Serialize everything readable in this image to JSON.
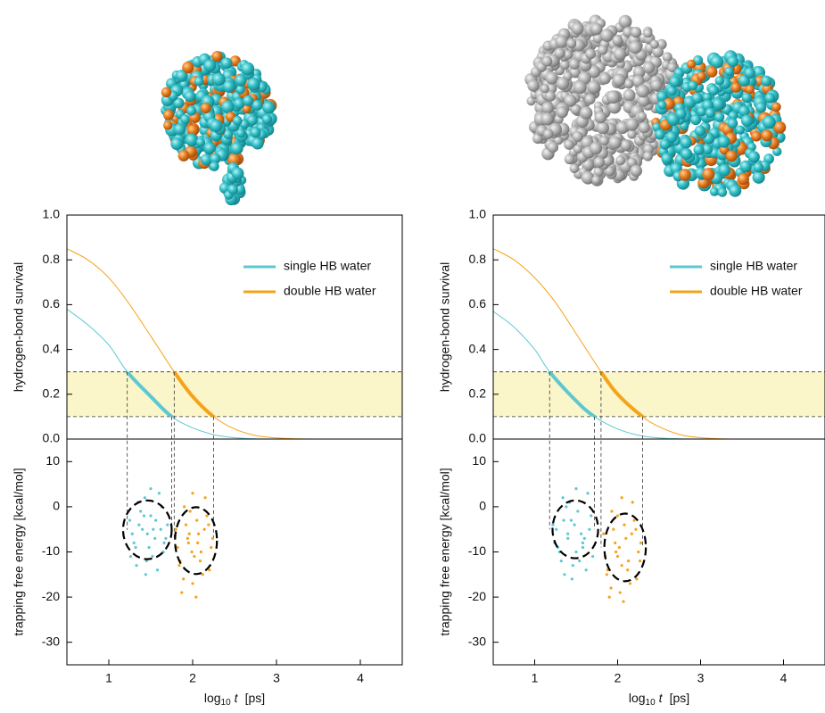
{
  "chart_data": [
    {
      "type": "line",
      "ylabel": "hydrogen-bond survival",
      "xlim": [
        0.5,
        4.5
      ],
      "ylim": [
        0,
        1
      ],
      "yticks": [
        {
          "value": 0,
          "label": "0.0"
        },
        {
          "value": 0.2,
          "label": "0.2"
        },
        {
          "value": 0.4,
          "label": "0.4"
        },
        {
          "value": 0.6,
          "label": "0.6"
        },
        {
          "value": 0.8,
          "label": "0.8"
        },
        {
          "value": 1,
          "label": "1.0"
        }
      ],
      "band": [
        0.1,
        0.3
      ],
      "legend": "upper right",
      "series": [
        {
          "name": "single HB water",
          "color": "#5ec8d2",
          "x": [
            0.5,
            0.75,
            1.0,
            1.22,
            1.5,
            1.75,
            2.0,
            2.25,
            2.5,
            2.75,
            3.0
          ],
          "values": [
            0.58,
            0.51,
            0.42,
            0.3,
            0.19,
            0.1,
            0.05,
            0.02,
            0.006,
            0.001,
            0
          ],
          "window": [
            1.22,
            1.75
          ]
        },
        {
          "name": "double HB water",
          "color": "#f5a31a",
          "x": [
            0.5,
            0.75,
            1.0,
            1.25,
            1.5,
            1.78,
            2.0,
            2.25,
            2.5,
            2.75,
            3.0,
            3.25,
            3.5
          ],
          "values": [
            0.85,
            0.8,
            0.72,
            0.6,
            0.46,
            0.3,
            0.19,
            0.1,
            0.045,
            0.016,
            0.005,
            0.001,
            0
          ],
          "window": [
            1.78,
            2.25
          ]
        }
      ]
    },
    {
      "type": "scatter",
      "ylabel": "trapping free energy [kcal/mol]",
      "xlabel": {
        "base": "log",
        "sub": "10",
        "var": "t",
        "unit": "[ps]"
      },
      "xlim": [
        0.5,
        4.5
      ],
      "ylim": [
        -35,
        15
      ],
      "xticks": [
        1,
        2,
        3,
        4
      ],
      "yticks": [
        10,
        0,
        -10,
        -20,
        -30
      ],
      "series": [
        {
          "color": "#5ec8d2",
          "x": [
            1.25,
            1.3,
            1.35,
            1.4,
            1.45,
            1.5,
            1.55,
            1.6,
            1.65,
            1.7,
            1.28,
            1.33,
            1.38,
            1.43,
            1.48,
            1.53,
            1.58,
            1.63,
            1.68,
            1.26,
            1.36,
            1.46,
            1.56,
            1.66,
            1.32,
            1.42,
            1.52,
            1.62,
            1.44,
            1.5
          ],
          "values": [
            -3,
            -8,
            1,
            -5,
            -12,
            -2,
            -7,
            3,
            -10,
            -4,
            -6,
            -13,
            -1,
            2,
            -9,
            -5,
            -14,
            0,
            -7,
            -11,
            -4,
            -6,
            -3,
            -8,
            -9,
            -2,
            -11,
            -5,
            -15,
            4
          ],
          "ellipse": {
            "cx": 1.46,
            "cy": -5.1,
            "rx": 0.29,
            "ry": 6.5
          }
        },
        {
          "color": "#f5a31a",
          "x": [
            1.8,
            1.85,
            1.9,
            1.95,
            2.0,
            2.05,
            2.1,
            2.15,
            2.2,
            2.24,
            1.82,
            1.87,
            1.92,
            1.97,
            2.02,
            2.07,
            2.12,
            2.17,
            2.22,
            1.84,
            1.94,
            2.04,
            2.14,
            1.89,
            1.99,
            2.09,
            2.19,
            2.0,
            2.06,
            1.96
          ],
          "values": [
            -5,
            -12,
            0,
            -8,
            -17,
            -3,
            -10,
            2,
            -14,
            -7,
            -9,
            -19,
            -4,
            -1,
            -11,
            -6,
            -15,
            -2,
            -9,
            -13,
            -7,
            -20,
            -5,
            -16,
            -10,
            -12,
            -4,
            3,
            -8,
            -6
          ],
          "ellipse": {
            "cx": 2.04,
            "cy": -7.5,
            "rx": 0.25,
            "ry": 7.4
          }
        }
      ]
    },
    {
      "type": "line",
      "ylabel": "hydrogen-bond survival",
      "xlim": [
        0.5,
        4.5
      ],
      "ylim": [
        0,
        1
      ],
      "yticks": [
        {
          "value": 0,
          "label": "0.0"
        },
        {
          "value": 0.2,
          "label": "0.2"
        },
        {
          "value": 0.4,
          "label": "0.4"
        },
        {
          "value": 0.6,
          "label": "0.6"
        },
        {
          "value": 0.8,
          "label": "0.8"
        },
        {
          "value": 1,
          "label": "1.0"
        }
      ],
      "band": [
        0.1,
        0.3
      ],
      "legend": "upper right",
      "series": [
        {
          "name": "single HB water",
          "color": "#5ec8d2",
          "x": [
            0.5,
            0.75,
            1.0,
            1.18,
            1.5,
            1.72,
            2.0,
            2.25,
            2.5,
            2.75,
            3.0
          ],
          "values": [
            0.57,
            0.5,
            0.4,
            0.3,
            0.17,
            0.1,
            0.045,
            0.017,
            0.005,
            0.001,
            0
          ],
          "window": [
            1.18,
            1.72
          ]
        },
        {
          "name": "double HB water",
          "color": "#f5a31a",
          "x": [
            0.5,
            0.75,
            1.0,
            1.25,
            1.5,
            1.8,
            2.0,
            2.3,
            2.5,
            2.75,
            3.0,
            3.25,
            3.5
          ],
          "values": [
            0.85,
            0.8,
            0.72,
            0.61,
            0.47,
            0.3,
            0.2,
            0.1,
            0.055,
            0.02,
            0.006,
            0.001,
            0
          ],
          "window": [
            1.8,
            2.3
          ]
        }
      ]
    },
    {
      "type": "scatter",
      "ylabel": "trapping free energy [kcal/mol]",
      "xlabel": {
        "base": "log",
        "sub": "10",
        "var": "t",
        "unit": "[ps]"
      },
      "xlim": [
        0.5,
        4.5
      ],
      "ylim": [
        -35,
        15
      ],
      "xticks": [
        1,
        2,
        3,
        4
      ],
      "yticks": [
        10,
        0,
        -10,
        -20,
        -30
      ],
      "series": [
        {
          "color": "#5ec8d2",
          "x": [
            1.22,
            1.28,
            1.34,
            1.4,
            1.46,
            1.52,
            1.58,
            1.64,
            1.7,
            1.26,
            1.32,
            1.38,
            1.44,
            1.5,
            1.56,
            1.62,
            1.68,
            1.24,
            1.36,
            1.48,
            1.6,
            1.3,
            1.42,
            1.54,
            1.66,
            1.45,
            1.5,
            1.35,
            1.58,
            1.4
          ],
          "values": [
            -4,
            -9,
            2,
            -6,
            -13,
            -1,
            -8,
            3,
            -11,
            -5,
            -12,
            0,
            -3,
            -10,
            -6,
            -14,
            -2,
            -8,
            -15,
            -4,
            -7,
            -10,
            1,
            -12,
            -5,
            -16,
            4,
            -3,
            -9,
            -7
          ],
          "ellipse": {
            "cx": 1.49,
            "cy": -5.0,
            "rx": 0.275,
            "ry": 6.4
          }
        },
        {
          "color": "#f5a31a",
          "x": [
            1.83,
            1.88,
            1.93,
            1.98,
            2.03,
            2.08,
            2.13,
            2.18,
            2.23,
            2.28,
            1.85,
            1.9,
            1.95,
            2.0,
            2.05,
            2.1,
            2.15,
            2.2,
            2.25,
            1.87,
            1.97,
            2.07,
            2.17,
            2.27,
            1.92,
            2.02,
            2.12,
            2.22,
            2.05,
            2.0
          ],
          "values": [
            -6,
            -14,
            -1,
            -10,
            -19,
            -4,
            -12,
            1,
            -16,
            -8,
            -11,
            -20,
            -5,
            -2,
            -13,
            -7,
            -17,
            -3,
            -10,
            -15,
            -8,
            -21,
            -6,
            -12,
            -18,
            -9,
            -14,
            -5,
            2,
            -11
          ],
          "ellipse": {
            "cx": 2.09,
            "cy": -9.0,
            "rx": 0.25,
            "ry": 7.5
          }
        }
      ]
    }
  ]
}
